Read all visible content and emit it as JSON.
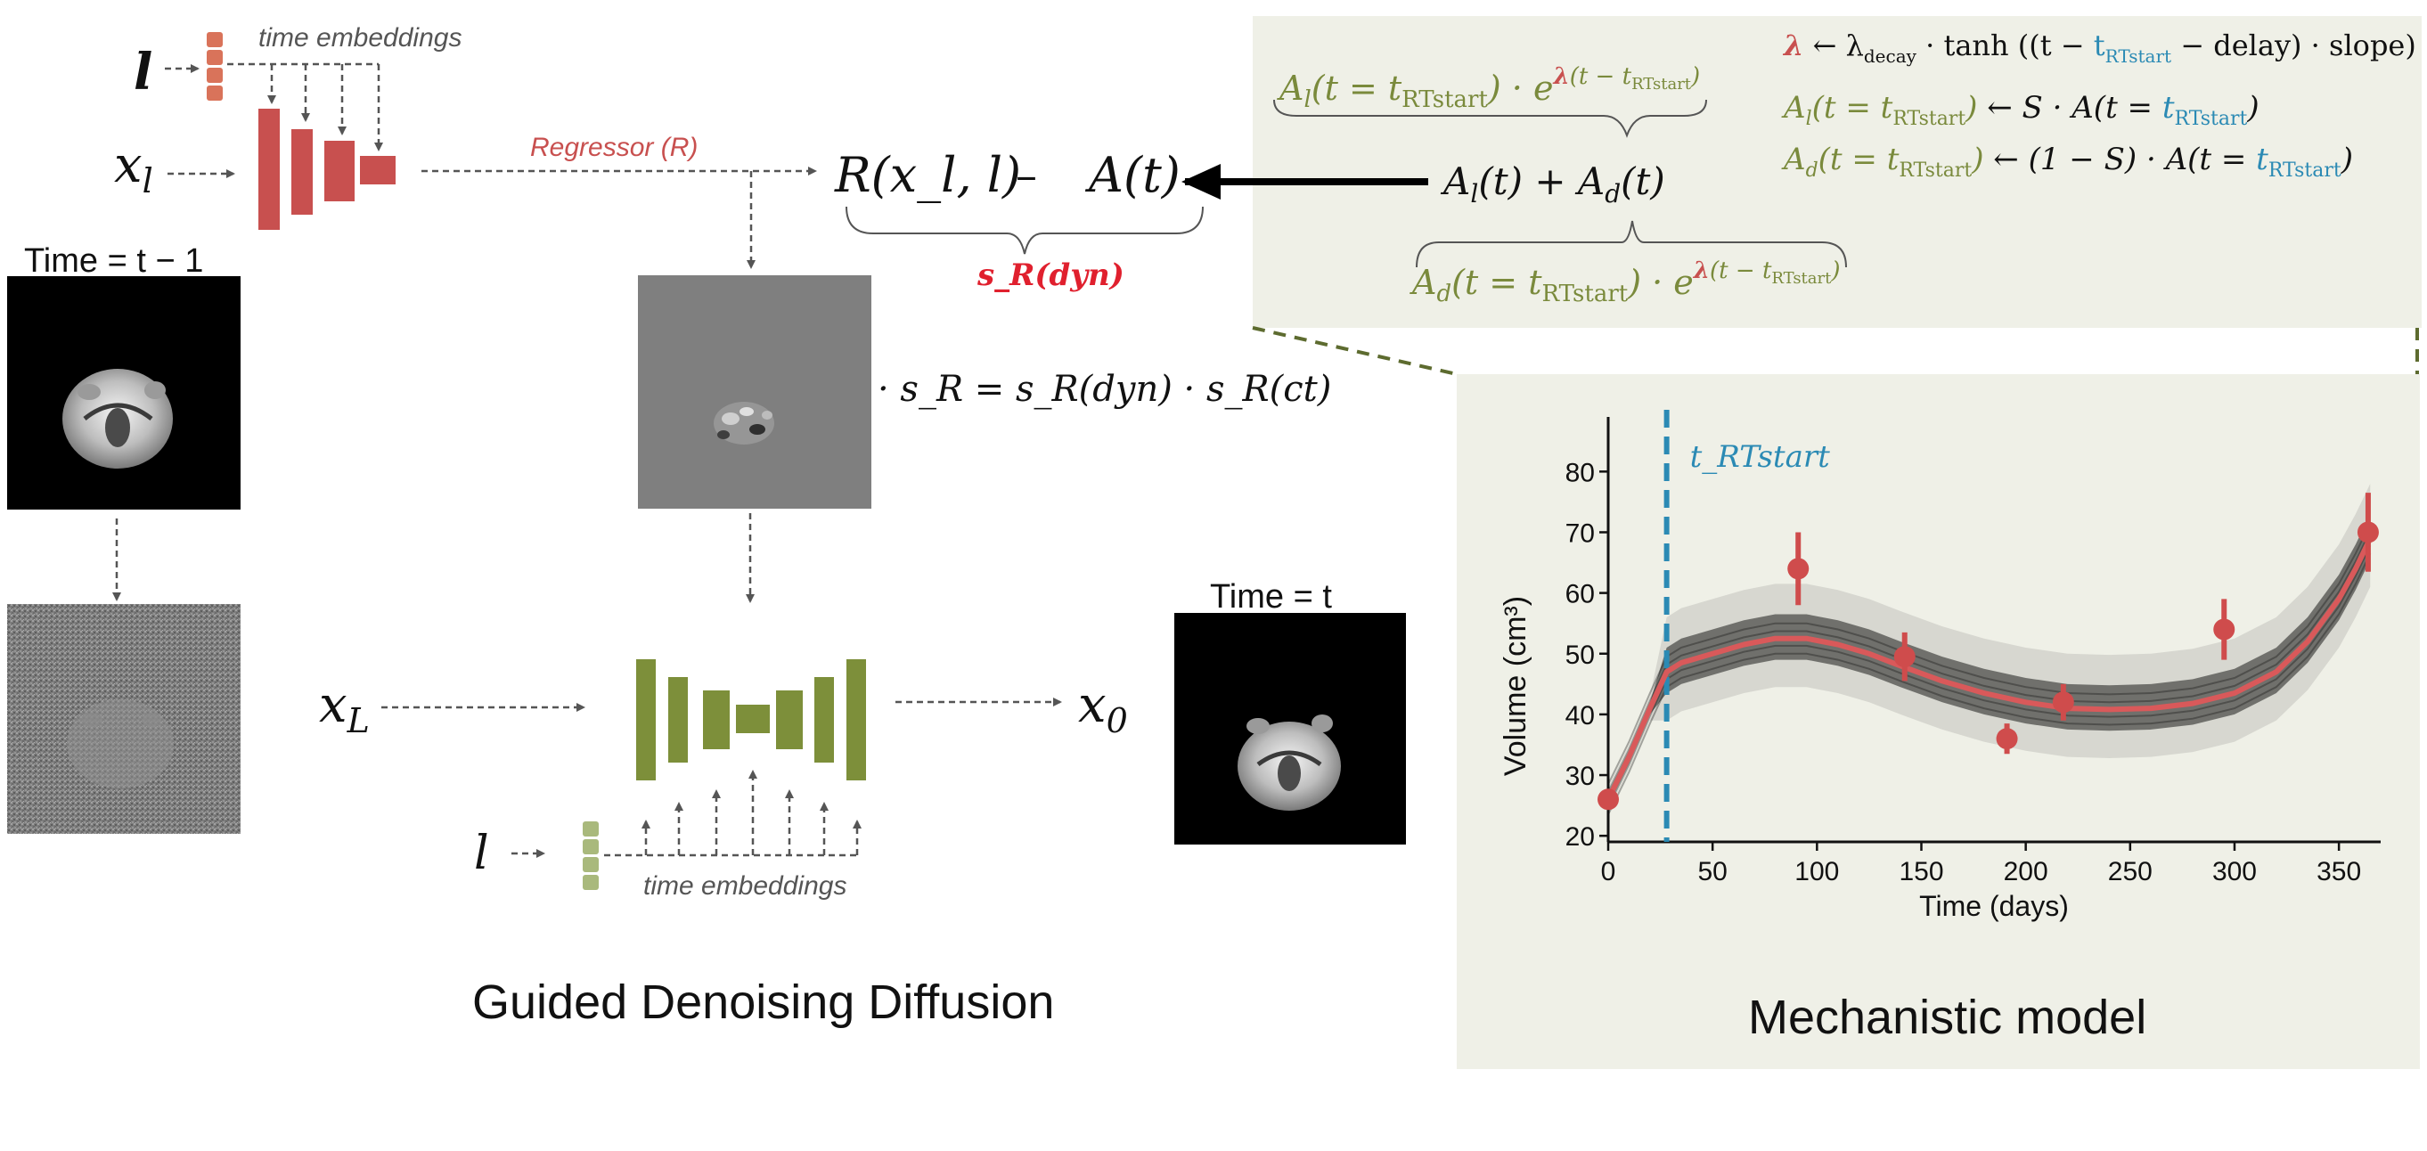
{
  "colors": {
    "regressor_red": "#c8504f",
    "unet_green": "#7d8f3a",
    "embed_green": "#a9b97c",
    "formula_green": "#7a8a3c",
    "accent_red": "#e0202e",
    "rt_blue": "#2b8ab4",
    "panel_bg": "#eff0e7",
    "mean_curve": "#d9595a",
    "dashed_edge": "#5d6b2f"
  },
  "regressor": {
    "label": "Regressor (R)",
    "time_embeddings": "time embeddings",
    "input_l": "l",
    "input_xl": "x_l"
  },
  "time_prev_label": "Time = t − 1",
  "time_label": "Time = t",
  "equation": {
    "R": "R(x_l, l)",
    "minus": "–",
    "A": "A(t)",
    "s_rdyn": "s_R(dyn)",
    "scale_line": "· s_R = s_R(dyn) · s_R(ct)"
  },
  "denoiser": {
    "xL": "x_L",
    "x0": "x_0",
    "l": "l",
    "time_embeddings": "time embeddings",
    "caption": "Guided Denoising Diffusion"
  },
  "mechanistic": {
    "caption": "Mechanistic model",
    "sum": "A_l(t) + A_d(t)",
    "Al_term": "A_l(t = t_RTstart) · e^{λ(t − t_RTstart)}",
    "Ad_term": "A_d(t = t_RTstart) · e^{λ(t − t_RTstart)}",
    "lambda_rule": "λ ← λ_decay · tanh ((t − t_RTstart − delay) · slope)",
    "Al_rule": "A_l(t = t_RTstart) ← S · A(t = t_RTstart)",
    "Ad_rule": "A_d(t = t_RTstart) ← (1 − S) · A(t = t_RTstart)"
  },
  "chart_data": {
    "type": "line",
    "xlabel": "Time (days)",
    "ylabel": "Volume (cm³)",
    "xlim": [
      0,
      370
    ],
    "ylim": [
      19,
      89
    ],
    "xticks": [
      0,
      50,
      100,
      150,
      200,
      250,
      300,
      350
    ],
    "yticks": [
      20,
      30,
      40,
      50,
      60,
      70,
      80
    ],
    "vline": {
      "x": 28,
      "label": "t_RTstart"
    },
    "series": [
      {
        "x": [
          0,
          10,
          20,
          28,
          35,
          50,
          65,
          80,
          95,
          110,
          125,
          140,
          160,
          180,
          200,
          220,
          240,
          260,
          280,
          300,
          320,
          335,
          350,
          358,
          365
        ],
        "values": [
          26,
          33,
          41,
          47,
          48.5,
          50,
          51.5,
          52.5,
          52.5,
          51.5,
          50,
          48,
          45.5,
          43.5,
          42,
          41,
          40.8,
          41,
          41.8,
          43.5,
          47,
          52,
          59,
          64,
          69
        ]
      }
    ],
    "observations": [
      {
        "x": 0,
        "y": 26,
        "err": 1.5
      },
      {
        "x": 91,
        "y": 64,
        "err": 6
      },
      {
        "x": 142,
        "y": 49.5,
        "err": 4
      },
      {
        "x": 191,
        "y": 36,
        "err": 2.5
      },
      {
        "x": 218,
        "y": 42,
        "err": 3
      },
      {
        "x": 295,
        "y": 54,
        "err": 5
      },
      {
        "x": 364,
        "y": 70,
        "err": 6.5
      }
    ]
  }
}
